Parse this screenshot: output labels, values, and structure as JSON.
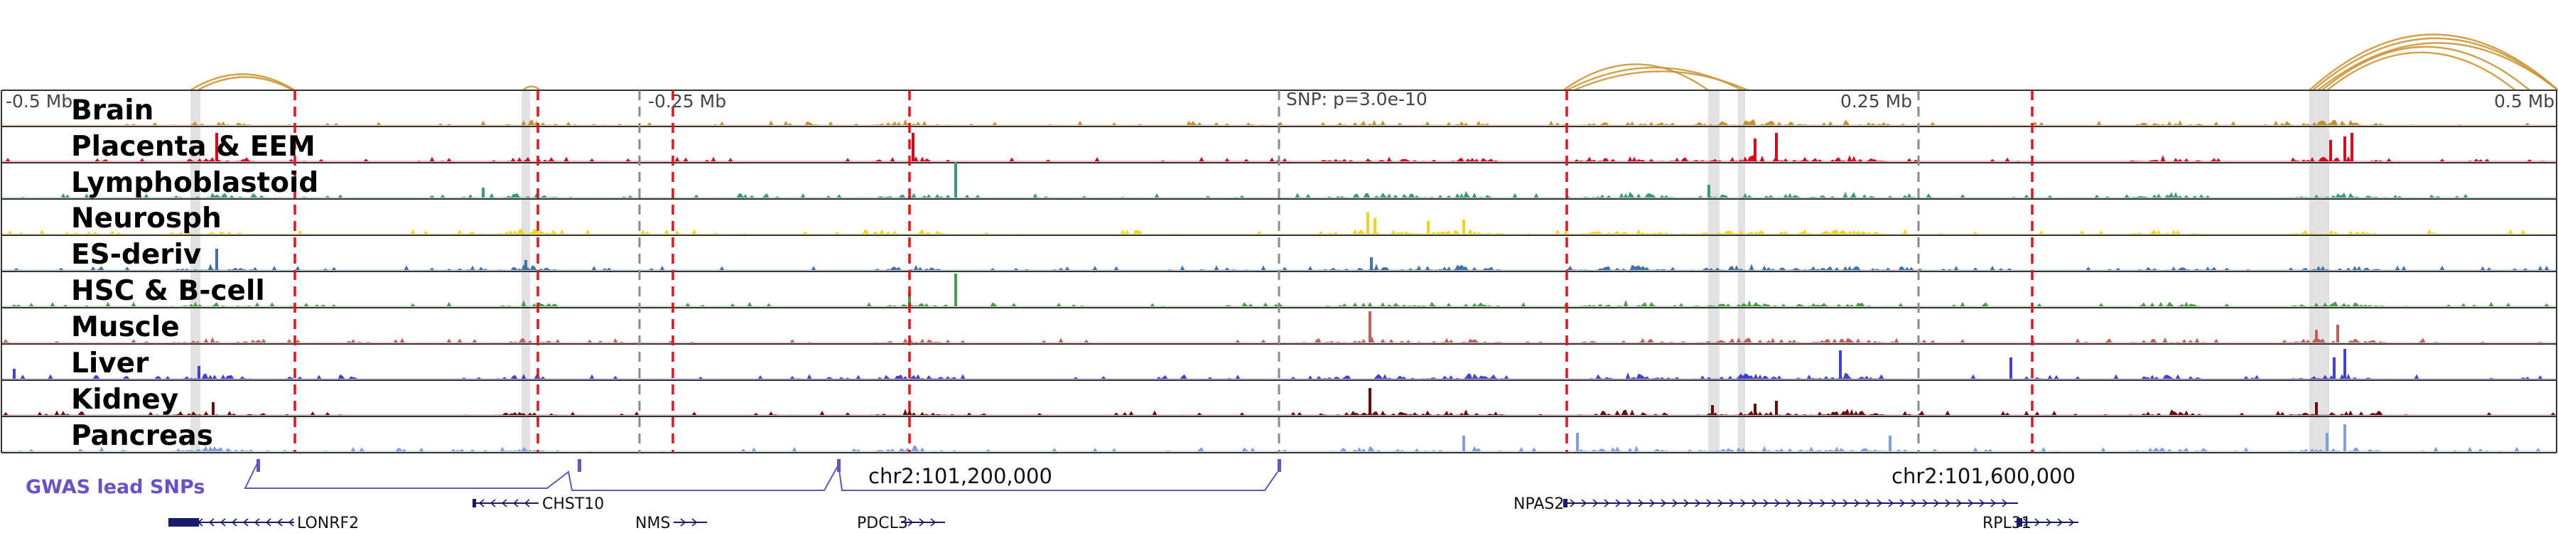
{
  "ruler": {
    "labels": [
      {
        "pos_mb": -0.5,
        "text": "-0.5 Mb"
      },
      {
        "pos_mb": -0.25,
        "text": "-0.25 Mb"
      },
      {
        "pos_mb": 0.25,
        "text": "0.25 Mb"
      },
      {
        "pos_mb": 0.5,
        "text": "0.5 Mb"
      }
    ],
    "snp_label": "SNP: p=3.0e-10"
  },
  "tracks": [
    {
      "name": "Brain",
      "color": "#c8902a"
    },
    {
      "name": "Placenta & EEM",
      "color": "#e0001a"
    },
    {
      "name": "Lymphoblastoid",
      "color": "#3a9a80"
    },
    {
      "name": "Neurosph",
      "color": "#f4d21a"
    },
    {
      "name": "ES-deriv",
      "color": "#3e72a8"
    },
    {
      "name": "HSC & B-cell",
      "color": "#4a9e48"
    },
    {
      "name": "Muscle",
      "color": "#c0605a"
    },
    {
      "name": "Liver",
      "color": "#4040d8"
    },
    {
      "name": "Kidney",
      "color": "#6a0a0a"
    },
    {
      "name": "Pancreas",
      "color": "#7f9fdf"
    }
  ],
  "gwas": {
    "label": "GWAS lead SNPs",
    "color": "#6a51c6",
    "coordinates": [
      "chr2:101,200,000",
      "chr2:101,600,000"
    ]
  },
  "genes": [
    {
      "name": "LONRF2",
      "strand": "-"
    },
    {
      "name": "CHST10",
      "strand": "-"
    },
    {
      "name": "NMS",
      "strand": "+"
    },
    {
      "name": "PDCL3",
      "strand": "+"
    },
    {
      "name": "NPAS2",
      "strand": "+"
    },
    {
      "name": "RPL31",
      "strand": "+"
    }
  ],
  "colors": {
    "loop": "#c8902a",
    "red_dashed": "#e8101a",
    "grey_dashed": "#8a8a8a",
    "highlight": "#bdbdbd",
    "gene": "#1a1a6a"
  }
}
